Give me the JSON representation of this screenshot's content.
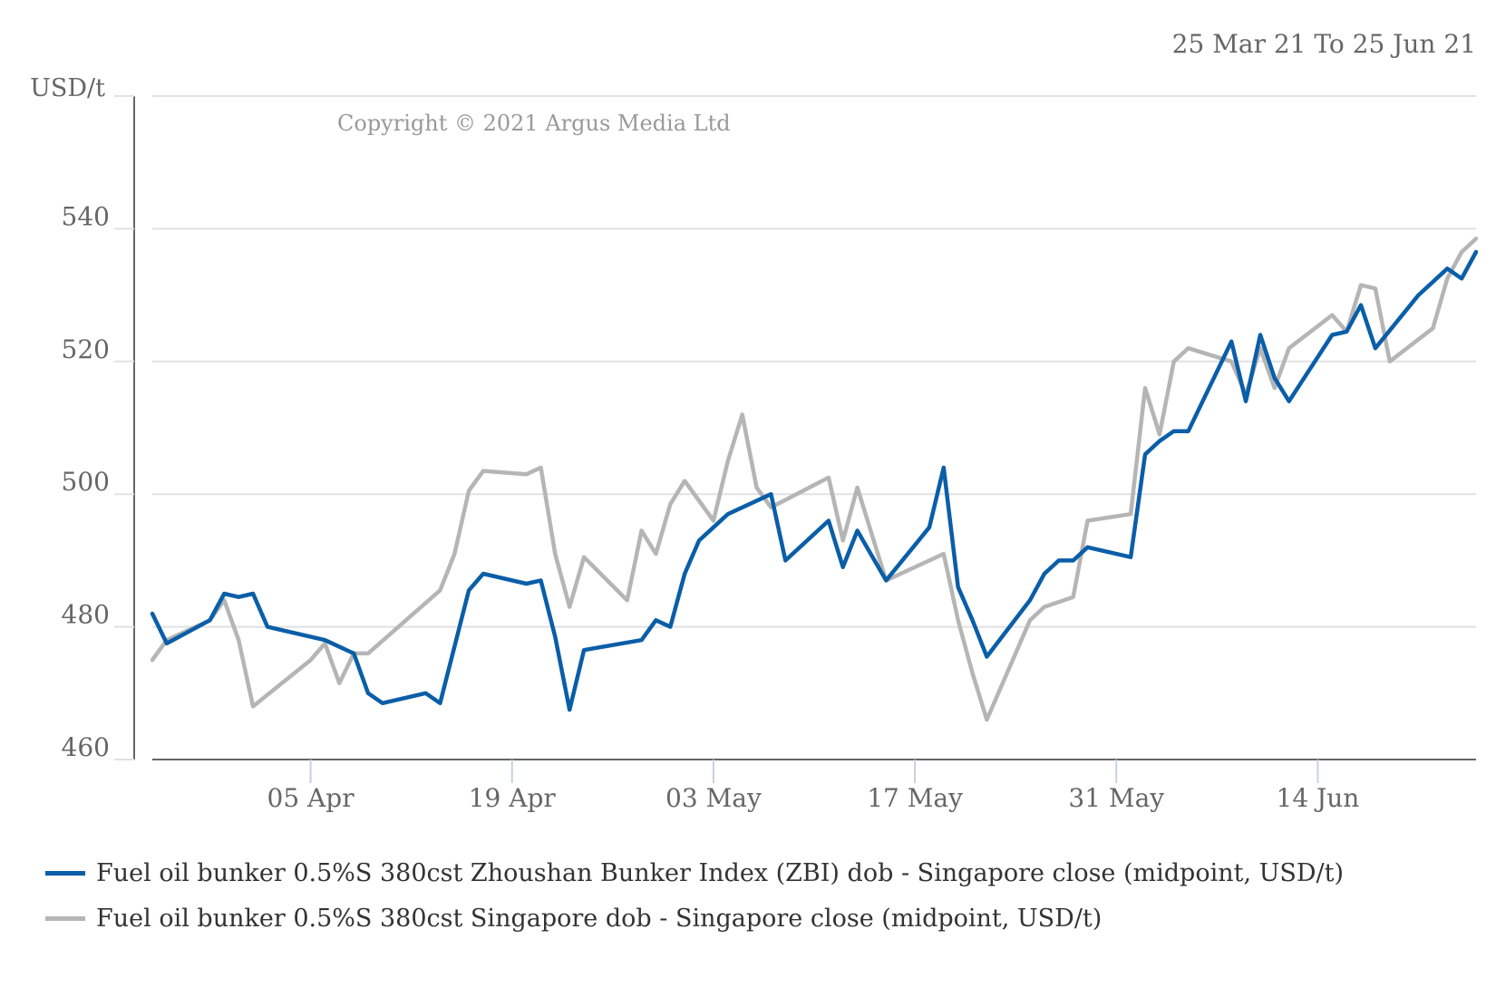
{
  "header": {
    "date_range": "25 Mar 21 To 25 Jun 21"
  },
  "copyright": "Copyright © 2021 Argus Media Ltd",
  "colors": {
    "zbi": "#0a5ea8",
    "singapore": "#b5b5b5",
    "grid": "#e1e1e6",
    "axis": "#666666",
    "tick_text": "#666666"
  },
  "chart_data": {
    "type": "line",
    "title": "",
    "xlabel": "",
    "ylabel": "USD/t",
    "x_axis_type": "date",
    "x_range": [
      "2021-03-25",
      "2021-06-25"
    ],
    "xlim": [
      "2021-03-25",
      "2021-06-25"
    ],
    "ylim": [
      460,
      560
    ],
    "y_ticks": [
      460,
      480,
      500,
      520,
      540
    ],
    "x_ticks": [
      {
        "date": "2021-04-05",
        "label": "05 Apr"
      },
      {
        "date": "2021-04-19",
        "label": "19 Apr"
      },
      {
        "date": "2021-05-03",
        "label": "03 May"
      },
      {
        "date": "2021-05-17",
        "label": "17 May"
      },
      {
        "date": "2021-05-31",
        "label": "31 May"
      },
      {
        "date": "2021-06-14",
        "label": "14 Jun"
      }
    ],
    "grid": true,
    "legend_position": "bottom",
    "series": [
      {
        "name": "Fuel oil bunker 0.5%S 380cst Zhoushan Bunker Index (ZBI) dob - Singapore close (midpoint, USD/t)",
        "color": "#0a5ea8",
        "points": [
          [
            "2021-03-25",
            482
          ],
          [
            "2021-03-26",
            477.5
          ],
          [
            "2021-03-29",
            481
          ],
          [
            "2021-03-30",
            485
          ],
          [
            "2021-03-31",
            484.5
          ],
          [
            "2021-04-01",
            485
          ],
          [
            "2021-04-02",
            480
          ],
          [
            "2021-04-06",
            478
          ],
          [
            "2021-04-07",
            477
          ],
          [
            "2021-04-08",
            476
          ],
          [
            "2021-04-09",
            470
          ],
          [
            "2021-04-10",
            468.5
          ],
          [
            "2021-04-13",
            470
          ],
          [
            "2021-04-14",
            468.5
          ],
          [
            "2021-04-16",
            485.5
          ],
          [
            "2021-04-17",
            488
          ],
          [
            "2021-04-20",
            486.5
          ],
          [
            "2021-04-21",
            487
          ],
          [
            "2021-04-22",
            478.5
          ],
          [
            "2021-04-23",
            467.5
          ],
          [
            "2021-04-24",
            476.5
          ],
          [
            "2021-04-28",
            478
          ],
          [
            "2021-04-29",
            481
          ],
          [
            "2021-04-30",
            480
          ],
          [
            "2021-05-01",
            488
          ],
          [
            "2021-05-02",
            493
          ],
          [
            "2021-05-03",
            495
          ],
          [
            "2021-05-04",
            497
          ],
          [
            "2021-05-07",
            500
          ],
          [
            "2021-05-08",
            490
          ],
          [
            "2021-05-11",
            496
          ],
          [
            "2021-05-12",
            489
          ],
          [
            "2021-05-13",
            494.5
          ],
          [
            "2021-05-15",
            487
          ],
          [
            "2021-05-18",
            495
          ],
          [
            "2021-05-19",
            504
          ],
          [
            "2021-05-20",
            486
          ],
          [
            "2021-05-21",
            481
          ],
          [
            "2021-05-22",
            475.5
          ],
          [
            "2021-05-25",
            484
          ],
          [
            "2021-05-26",
            488
          ],
          [
            "2021-05-27",
            490
          ],
          [
            "2021-05-28",
            490
          ],
          [
            "2021-05-29",
            492
          ],
          [
            "2021-06-01",
            490.5
          ],
          [
            "2021-06-02",
            506
          ],
          [
            "2021-06-03",
            508
          ],
          [
            "2021-06-04",
            509.5
          ],
          [
            "2021-06-05",
            509.5
          ],
          [
            "2021-06-08",
            523
          ],
          [
            "2021-06-09",
            514
          ],
          [
            "2021-06-10",
            524
          ],
          [
            "2021-06-11",
            517.5
          ],
          [
            "2021-06-12",
            514
          ],
          [
            "2021-06-15",
            524
          ],
          [
            "2021-06-16",
            524.5
          ],
          [
            "2021-06-17",
            528.5
          ],
          [
            "2021-06-18",
            522
          ],
          [
            "2021-06-21",
            530
          ],
          [
            "2021-06-22",
            532
          ],
          [
            "2021-06-23",
            534
          ],
          [
            "2021-06-24",
            532.5
          ],
          [
            "2021-06-25",
            536.5
          ]
        ]
      },
      {
        "name": "Fuel oil bunker 0.5%S 380cst Singapore dob - Singapore close (midpoint, USD/t)",
        "color": "#b5b5b5",
        "points": [
          [
            "2021-03-25",
            475
          ],
          [
            "2021-03-26",
            478
          ],
          [
            "2021-03-29",
            481
          ],
          [
            "2021-03-30",
            484
          ],
          [
            "2021-03-31",
            478
          ],
          [
            "2021-04-01",
            468
          ],
          [
            "2021-04-05",
            475
          ],
          [
            "2021-04-06",
            477.5
          ],
          [
            "2021-04-07",
            471.5
          ],
          [
            "2021-04-08",
            476
          ],
          [
            "2021-04-09",
            476
          ],
          [
            "2021-04-14",
            485.5
          ],
          [
            "2021-04-15",
            491
          ],
          [
            "2021-04-16",
            500.5
          ],
          [
            "2021-04-17",
            503.5
          ],
          [
            "2021-04-20",
            503
          ],
          [
            "2021-04-21",
            504
          ],
          [
            "2021-04-22",
            491
          ],
          [
            "2021-04-23",
            483
          ],
          [
            "2021-04-24",
            490.5
          ],
          [
            "2021-04-27",
            484
          ],
          [
            "2021-04-28",
            494.5
          ],
          [
            "2021-04-29",
            491
          ],
          [
            "2021-04-30",
            498.5
          ],
          [
            "2021-05-01",
            502
          ],
          [
            "2021-05-03",
            496
          ],
          [
            "2021-05-04",
            505
          ],
          [
            "2021-05-05",
            512
          ],
          [
            "2021-05-06",
            501
          ],
          [
            "2021-05-07",
            498
          ],
          [
            "2021-05-11",
            502.5
          ],
          [
            "2021-05-12",
            493
          ],
          [
            "2021-05-13",
            501
          ],
          [
            "2021-05-15",
            487
          ],
          [
            "2021-05-19",
            491
          ],
          [
            "2021-05-20",
            481
          ],
          [
            "2021-05-21",
            473
          ],
          [
            "2021-05-22",
            466
          ],
          [
            "2021-05-25",
            481
          ],
          [
            "2021-05-26",
            483
          ],
          [
            "2021-05-28",
            484.5
          ],
          [
            "2021-05-29",
            496
          ],
          [
            "2021-06-01",
            497
          ],
          [
            "2021-06-02",
            516
          ],
          [
            "2021-06-03",
            509
          ],
          [
            "2021-06-04",
            520
          ],
          [
            "2021-06-05",
            522
          ],
          [
            "2021-06-08",
            520
          ],
          [
            "2021-06-09",
            515
          ],
          [
            "2021-06-10",
            522
          ],
          [
            "2021-06-11",
            516
          ],
          [
            "2021-06-12",
            522
          ],
          [
            "2021-06-15",
            527
          ],
          [
            "2021-06-16",
            524.5
          ],
          [
            "2021-06-17",
            531.5
          ],
          [
            "2021-06-18",
            531
          ],
          [
            "2021-06-19",
            520
          ],
          [
            "2021-06-22",
            525
          ],
          [
            "2021-06-23",
            532.5
          ],
          [
            "2021-06-24",
            536.5
          ],
          [
            "2021-06-25",
            538.5
          ]
        ]
      }
    ]
  }
}
